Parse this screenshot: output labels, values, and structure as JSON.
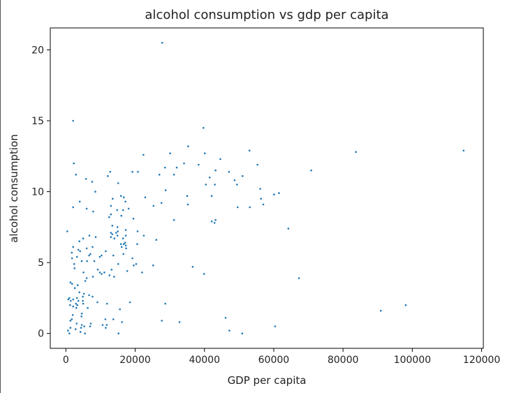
{
  "chart_data": {
    "type": "scatter",
    "title": "alcohol consumption vs gdp per capita",
    "xlabel": "GDP per capita",
    "ylabel": "alcohol consumption",
    "xlim": [
      -4500,
      120500
    ],
    "ylim": [
      -1.05,
      21.55
    ],
    "xticks": [
      0,
      20000,
      40000,
      60000,
      80000,
      100000,
      120000
    ],
    "yticks": [
      0,
      5,
      10,
      15,
      20
    ],
    "grid": false,
    "marker_color": "#1f77b4",
    "points": [
      [
        27800,
        20.5
      ],
      [
        2100,
        15.0
      ],
      [
        39700,
        14.5
      ],
      [
        35300,
        13.2
      ],
      [
        53000,
        12.9
      ],
      [
        83700,
        12.8
      ],
      [
        114800,
        12.9
      ],
      [
        30100,
        12.7
      ],
      [
        40100,
        12.7
      ],
      [
        22400,
        12.6
      ],
      [
        44600,
        12.3
      ],
      [
        2300,
        12.0
      ],
      [
        34100,
        12.0
      ],
      [
        38300,
        11.9
      ],
      [
        55300,
        11.9
      ],
      [
        28600,
        11.7
      ],
      [
        32000,
        11.7
      ],
      [
        43200,
        11.5
      ],
      [
        47100,
        11.4
      ],
      [
        70800,
        11.5
      ],
      [
        19200,
        11.4
      ],
      [
        20800,
        11.4
      ],
      [
        12800,
        11.4
      ],
      [
        27000,
        11.2
      ],
      [
        12100,
        11.1
      ],
      [
        2900,
        11.2
      ],
      [
        31200,
        11.2
      ],
      [
        51000,
        11.1
      ],
      [
        41500,
        11.0
      ],
      [
        5800,
        10.9
      ],
      [
        48700,
        10.8
      ],
      [
        7600,
        10.7
      ],
      [
        40400,
        10.5
      ],
      [
        43000,
        10.5
      ],
      [
        15100,
        10.6
      ],
      [
        49400,
        10.5
      ],
      [
        56100,
        10.2
      ],
      [
        28800,
        10.1
      ],
      [
        8500,
        10.0
      ],
      [
        61500,
        9.9
      ],
      [
        60100,
        9.8
      ],
      [
        35000,
        9.7
      ],
      [
        42100,
        9.7
      ],
      [
        15900,
        9.7
      ],
      [
        22900,
        9.6
      ],
      [
        16700,
        9.6
      ],
      [
        13500,
        9.5
      ],
      [
        56300,
        9.5
      ],
      [
        17200,
        9.3
      ],
      [
        4000,
        9.3
      ],
      [
        27600,
        9.2
      ],
      [
        57000,
        9.1
      ],
      [
        13000,
        9.0
      ],
      [
        35200,
        9.1
      ],
      [
        25300,
        9.0
      ],
      [
        2100,
        8.9
      ],
      [
        49600,
        8.9
      ],
      [
        53100,
        8.9
      ],
      [
        6000,
        8.8
      ],
      [
        18100,
        8.8
      ],
      [
        14800,
        8.7
      ],
      [
        16500,
        8.7
      ],
      [
        7900,
        8.6
      ],
      [
        13000,
        8.4
      ],
      [
        16000,
        8.3
      ],
      [
        12500,
        8.2
      ],
      [
        19500,
        8.1
      ],
      [
        31200,
        8.0
      ],
      [
        42100,
        7.9
      ],
      [
        43200,
        8.0
      ],
      [
        42900,
        7.8
      ],
      [
        13400,
        7.6
      ],
      [
        14900,
        7.5
      ],
      [
        64200,
        7.4
      ],
      [
        17300,
        7.3
      ],
      [
        15000,
        7.2
      ],
      [
        13400,
        7.0
      ],
      [
        13000,
        7.1
      ],
      [
        20700,
        7.2
      ],
      [
        400,
        7.2
      ],
      [
        14500,
        7.1
      ],
      [
        14900,
        6.9
      ],
      [
        22500,
        6.9
      ],
      [
        6800,
        6.9
      ],
      [
        17300,
        6.9
      ],
      [
        13000,
        6.8
      ],
      [
        8600,
        6.8
      ],
      [
        16500,
        6.7
      ],
      [
        5000,
        6.7
      ],
      [
        14000,
        6.7
      ],
      [
        26100,
        6.6
      ],
      [
        3900,
        6.5
      ],
      [
        17100,
        6.4
      ],
      [
        15900,
        6.3
      ],
      [
        16700,
        6.3
      ],
      [
        17300,
        6.2
      ],
      [
        2100,
        6.1
      ],
      [
        6000,
        6.0
      ],
      [
        20600,
        6.3
      ],
      [
        16100,
        6.1
      ],
      [
        7700,
        6.1
      ],
      [
        17400,
        6.0
      ],
      [
        3600,
        5.9
      ],
      [
        4100,
        5.8
      ],
      [
        11500,
        5.8
      ],
      [
        1700,
        5.7
      ],
      [
        16600,
        5.6
      ],
      [
        7100,
        5.6
      ],
      [
        6700,
        5.5
      ],
      [
        13700,
        5.5
      ],
      [
        10300,
        5.5
      ],
      [
        9800,
        5.4
      ],
      [
        3200,
        5.4
      ],
      [
        1800,
        5.3
      ],
      [
        19200,
        5.3
      ],
      [
        4600,
        5.1
      ],
      [
        8200,
        5.1
      ],
      [
        6100,
        5.1
      ],
      [
        15100,
        4.9
      ],
      [
        2400,
        4.9
      ],
      [
        20300,
        4.9
      ],
      [
        19600,
        4.8
      ],
      [
        25200,
        4.8
      ],
      [
        36600,
        4.7
      ],
      [
        2500,
        4.6
      ],
      [
        9200,
        4.5
      ],
      [
        13200,
        4.5
      ],
      [
        17700,
        4.4
      ],
      [
        5100,
        4.3
      ],
      [
        9800,
        4.3
      ],
      [
        11100,
        4.3
      ],
      [
        22000,
        4.3
      ],
      [
        39900,
        4.2
      ],
      [
        10300,
        4.2
      ],
      [
        12600,
        4.1
      ],
      [
        13900,
        4.0
      ],
      [
        7800,
        4.0
      ],
      [
        6000,
        3.9
      ],
      [
        67300,
        3.9
      ],
      [
        5600,
        3.7
      ],
      [
        1300,
        3.6
      ],
      [
        1800,
        3.5
      ],
      [
        3400,
        3.4
      ],
      [
        2600,
        3.2
      ],
      [
        3900,
        2.9
      ],
      [
        5200,
        2.8
      ],
      [
        6700,
        2.7
      ],
      [
        4900,
        2.6
      ],
      [
        7700,
        2.6
      ],
      [
        3200,
        2.5
      ],
      [
        1000,
        2.5
      ],
      [
        2100,
        2.4
      ],
      [
        700,
        2.4
      ],
      [
        1400,
        2.3
      ],
      [
        3600,
        2.3
      ],
      [
        4900,
        2.3
      ],
      [
        9100,
        2.2
      ],
      [
        2900,
        2.1
      ],
      [
        5000,
        2.1
      ],
      [
        3300,
        2.0
      ],
      [
        28700,
        2.1
      ],
      [
        11900,
        2.1
      ],
      [
        18500,
        2.2
      ],
      [
        1200,
        2.0
      ],
      [
        2100,
        1.9
      ],
      [
        98100,
        2.0
      ],
      [
        3000,
        1.8
      ],
      [
        6300,
        1.8
      ],
      [
        15600,
        1.7
      ],
      [
        90900,
        1.6
      ],
      [
        4600,
        1.4
      ],
      [
        2000,
        1.3
      ],
      [
        4500,
        1.2
      ],
      [
        46100,
        1.1
      ],
      [
        1700,
        1.0
      ],
      [
        11400,
        1.0
      ],
      [
        13700,
        1.0
      ],
      [
        1300,
        0.9
      ],
      [
        16200,
        0.8
      ],
      [
        27700,
        0.9
      ],
      [
        32800,
        0.8
      ],
      [
        3100,
        0.7
      ],
      [
        7200,
        0.7
      ],
      [
        4600,
        0.6
      ],
      [
        11800,
        0.6
      ],
      [
        10600,
        0.6
      ],
      [
        1300,
        0.4
      ],
      [
        4400,
        0.4
      ],
      [
        5300,
        0.5
      ],
      [
        60400,
        0.5
      ],
      [
        11500,
        0.4
      ],
      [
        7000,
        0.5
      ],
      [
        2800,
        0.3
      ],
      [
        600,
        0.2
      ],
      [
        47200,
        0.2
      ],
      [
        4200,
        0.1
      ],
      [
        1000,
        0.0
      ],
      [
        5500,
        0.0
      ],
      [
        15200,
        0.0
      ],
      [
        50900,
        0.0
      ]
    ]
  }
}
